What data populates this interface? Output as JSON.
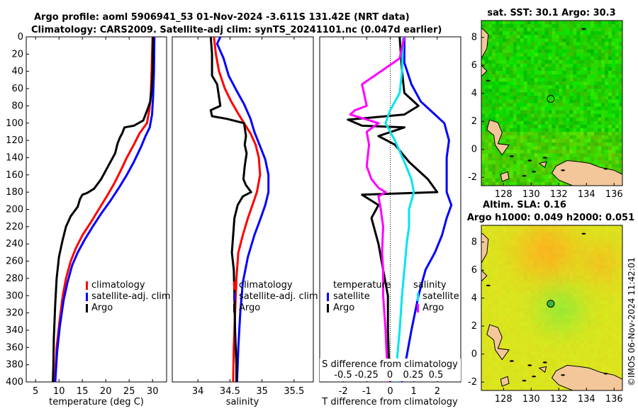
{
  "header": {
    "line1": "Argo profile: aoml 5906941_53 01-Nov-2024 -3.611S 131.42E (NRT data)",
    "line2": "Climatology: CARS2009. Satellite-adj clim: synTS_20241101.nc (0.047d earlier)"
  },
  "colors": {
    "climatology": "#ff0000",
    "satellite": "#0000ff",
    "argo": "#000000",
    "s_sat": "#00e5ee",
    "s_argo": "#ff00ff"
  },
  "chart_data": [
    {
      "type": "line",
      "id": "temperature",
      "xlabel": "temperature (deg C)",
      "ylabel": "",
      "xlim": [
        3,
        33
      ],
      "ylim": [
        0,
        400
      ],
      "xticks": [
        5,
        10,
        15,
        20,
        25,
        30
      ],
      "yticks": [
        0,
        20,
        40,
        60,
        80,
        100,
        120,
        140,
        160,
        180,
        200,
        220,
        240,
        260,
        280,
        300,
        320,
        340,
        360,
        380,
        400
      ],
      "legend": [
        "climatology",
        "satellite-adj. clim",
        "Argo"
      ],
      "series": [
        {
          "name": "climatology",
          "color": "#ff0000",
          "points": [
            [
              30.0,
              0
            ],
            [
              29.8,
              40
            ],
            [
              29.6,
              70
            ],
            [
              29.3,
              85
            ],
            [
              28.8,
              100
            ],
            [
              27.2,
              112
            ],
            [
              26.0,
              125
            ],
            [
              24.5,
              140
            ],
            [
              23.2,
              155
            ],
            [
              21.8,
              170
            ],
            [
              20.2,
              185
            ],
            [
              18.5,
              200
            ],
            [
              16.8,
              215
            ],
            [
              15.0,
              230
            ],
            [
              13.6,
              245
            ],
            [
              12.5,
              260
            ],
            [
              11.5,
              280
            ],
            [
              10.8,
              300
            ],
            [
              10.1,
              330
            ],
            [
              9.5,
              360
            ],
            [
              9.1,
              400
            ]
          ]
        },
        {
          "name": "satellite-adj. clim",
          "color": "#0000ff",
          "points": [
            [
              30.4,
              0
            ],
            [
              30.3,
              40
            ],
            [
              30.1,
              70
            ],
            [
              29.9,
              90
            ],
            [
              29.4,
              105
            ],
            [
              28.5,
              115
            ],
            [
              27.5,
              128
            ],
            [
              26.0,
              145
            ],
            [
              24.5,
              160
            ],
            [
              22.8,
              175
            ],
            [
              21.0,
              190
            ],
            [
              19.0,
              205
            ],
            [
              17.2,
              220
            ],
            [
              15.5,
              235
            ],
            [
              14.0,
              250
            ],
            [
              12.8,
              265
            ],
            [
              11.8,
              285
            ],
            [
              11.0,
              305
            ],
            [
              10.2,
              335
            ],
            [
              9.6,
              365
            ],
            [
              9.2,
              400
            ]
          ]
        },
        {
          "name": "Argo",
          "color": "#000000",
          "points": [
            [
              30.1,
              0
            ],
            [
              30.0,
              40
            ],
            [
              29.8,
              60
            ],
            [
              29.5,
              75
            ],
            [
              29.0,
              83
            ],
            [
              28.5,
              90
            ],
            [
              28.0,
              97
            ],
            [
              26.0,
              103
            ],
            [
              24.0,
              105
            ],
            [
              23.5,
              112
            ],
            [
              23.0,
              117
            ],
            [
              22.5,
              124
            ],
            [
              22.0,
              135
            ],
            [
              21.0,
              145
            ],
            [
              20.0,
              155
            ],
            [
              19.0,
              165
            ],
            [
              17.5,
              176
            ],
            [
              16.0,
              181
            ],
            [
              15.0,
              183
            ],
            [
              14.5,
              188
            ],
            [
              14.0,
              197
            ],
            [
              12.5,
              208
            ],
            [
              11.5,
              220
            ],
            [
              10.8,
              235
            ],
            [
              10.0,
              255
            ],
            [
              9.5,
              280
            ],
            [
              9.2,
              310
            ],
            [
              8.9,
              350
            ],
            [
              8.8,
              380
            ],
            [
              8.7,
              400
            ]
          ]
        }
      ]
    },
    {
      "type": "line",
      "id": "salinity",
      "xlabel": "salinity",
      "xlim": [
        33.6,
        35.8
      ],
      "ylim": [
        0,
        400
      ],
      "xticks": [
        34,
        34.5,
        35,
        35.5
      ],
      "legend": [
        "climatology",
        "satellite-adj. clim",
        "Argo"
      ],
      "series": [
        {
          "name": "climatology",
          "color": "#ff0000",
          "points": [
            [
              34.25,
              0
            ],
            [
              34.28,
              20
            ],
            [
              34.33,
              40
            ],
            [
              34.42,
              60
            ],
            [
              34.52,
              75
            ],
            [
              34.62,
              88
            ],
            [
              34.72,
              100
            ],
            [
              34.82,
              112
            ],
            [
              34.9,
              125
            ],
            [
              34.95,
              140
            ],
            [
              34.97,
              160
            ],
            [
              34.92,
              180
            ],
            [
              34.85,
              195
            ],
            [
              34.78,
              210
            ],
            [
              34.7,
              230
            ],
            [
              34.63,
              250
            ],
            [
              34.6,
              280
            ],
            [
              34.58,
              320
            ],
            [
              34.56,
              360
            ],
            [
              34.55,
              400
            ]
          ]
        },
        {
          "name": "satellite-adj. clim",
          "color": "#0000ff",
          "points": [
            [
              34.35,
              0
            ],
            [
              34.3,
              8
            ],
            [
              34.4,
              25
            ],
            [
              34.48,
              45
            ],
            [
              34.6,
              62
            ],
            [
              34.72,
              78
            ],
            [
              34.82,
              95
            ],
            [
              34.88,
              110
            ],
            [
              34.96,
              125
            ],
            [
              35.05,
              142
            ],
            [
              35.1,
              160
            ],
            [
              35.1,
              180
            ],
            [
              35.05,
              195
            ],
            [
              34.98,
              210
            ],
            [
              34.88,
              230
            ],
            [
              34.78,
              255
            ],
            [
              34.7,
              285
            ],
            [
              34.66,
              320
            ],
            [
              34.63,
              360
            ],
            [
              34.61,
              400
            ]
          ]
        },
        {
          "name": "Argo",
          "color": "#000000",
          "points": [
            [
              34.2,
              0
            ],
            [
              34.22,
              20
            ],
            [
              34.22,
              45
            ],
            [
              34.3,
              55
            ],
            [
              34.32,
              65
            ],
            [
              34.35,
              80
            ],
            [
              34.2,
              85
            ],
            [
              34.22,
              92
            ],
            [
              34.45,
              95
            ],
            [
              34.72,
              100
            ],
            [
              34.75,
              115
            ],
            [
              34.73,
              125
            ],
            [
              34.76,
              135
            ],
            [
              34.73,
              150
            ],
            [
              34.71,
              165
            ],
            [
              34.75,
              172
            ],
            [
              34.83,
              180
            ],
            [
              34.7,
              185
            ],
            [
              34.62,
              195
            ],
            [
              34.57,
              210
            ],
            [
              34.55,
              230
            ],
            [
              34.53,
              250
            ],
            [
              34.56,
              270
            ],
            [
              34.57,
              300
            ],
            [
              34.58,
              340
            ],
            [
              34.6,
              380
            ],
            [
              34.6,
              400
            ]
          ]
        }
      ]
    },
    {
      "type": "line",
      "id": "difference",
      "xlabel": "T difference from climatology",
      "xlabel2": "S difference from climatology",
      "xlim": [
        -3.0,
        3.0
      ],
      "ylim": [
        0,
        400
      ],
      "xticks": [
        -2,
        -1,
        0,
        1,
        2
      ],
      "xticks2": [
        "-0.5",
        "-0.25",
        "0",
        "0.25",
        "0.5"
      ],
      "legend_left_title": "temperature",
      "legend_right_title": "salinity",
      "legend_left": [
        "satellite",
        "Argo"
      ],
      "legend_right": [
        "satellite",
        "Argo"
      ],
      "series": [
        {
          "name": "T satellite",
          "color": "#0000ff",
          "points": [
            [
              0.6,
              0
            ],
            [
              0.6,
              30
            ],
            [
              0.9,
              55
            ],
            [
              1.3,
              75
            ],
            [
              1.7,
              85
            ],
            [
              2.3,
              100
            ],
            [
              2.5,
              120
            ],
            [
              2.4,
              140
            ],
            [
              2.4,
              160
            ],
            [
              2.4,
              180
            ],
            [
              2.6,
              195
            ],
            [
              2.4,
              210
            ],
            [
              2.2,
              230
            ],
            [
              1.9,
              250
            ],
            [
              1.5,
              270
            ],
            [
              1.2,
              300
            ],
            [
              0.9,
              340
            ],
            [
              0.7,
              370
            ],
            [
              0.5,
              400
            ]
          ]
        },
        {
          "name": "T Argo",
          "color": "#000000",
          "points": [
            [
              0.4,
              0
            ],
            [
              0.5,
              40
            ],
            [
              0.6,
              65
            ],
            [
              1.2,
              80
            ],
            [
              0.6,
              90
            ],
            [
              -1.8,
              96
            ],
            [
              -1.2,
              103
            ],
            [
              0.6,
              105
            ],
            [
              -0.5,
              115
            ],
            [
              0.2,
              125
            ],
            [
              0.8,
              145
            ],
            [
              1.6,
              165
            ],
            [
              2.0,
              180
            ],
            [
              -1.2,
              183
            ],
            [
              -0.5,
              195
            ],
            [
              -0.8,
              210
            ],
            [
              -0.5,
              240
            ],
            [
              -0.3,
              270
            ],
            [
              -0.1,
              300
            ],
            [
              -0.1,
              340
            ],
            [
              -0.05,
              380
            ],
            [
              0.0,
              400
            ]
          ]
        },
        {
          "name": "S satellite",
          "color": "#00e5ee",
          "points": [
            [
              0.55,
              0
            ],
            [
              0.5,
              40
            ],
            [
              0.4,
              65
            ],
            [
              0.0,
              85
            ],
            [
              -0.2,
              100
            ],
            [
              0.2,
              120
            ],
            [
              0.6,
              145
            ],
            [
              0.9,
              165
            ],
            [
              1.0,
              180
            ],
            [
              0.8,
              200
            ],
            [
              0.8,
              220
            ],
            [
              0.7,
              240
            ],
            [
              0.6,
              270
            ],
            [
              0.5,
              300
            ],
            [
              0.4,
              340
            ],
            [
              0.3,
              370
            ],
            [
              0.25,
              400
            ]
          ]
        },
        {
          "name": "S Argo",
          "color": "#ff00ff",
          "points": [
            [
              0.6,
              0
            ],
            [
              0.4,
              25
            ],
            [
              -1.2,
              55
            ],
            [
              -1.0,
              80
            ],
            [
              -1.5,
              85
            ],
            [
              -1.7,
              90
            ],
            [
              -0.5,
              100
            ],
            [
              -1.0,
              110
            ],
            [
              -0.9,
              125
            ],
            [
              -1.0,
              150
            ],
            [
              -0.8,
              165
            ],
            [
              -0.5,
              175
            ],
            [
              -0.2,
              180
            ],
            [
              -0.5,
              185
            ],
            [
              -0.4,
              200
            ],
            [
              -0.3,
              220
            ],
            [
              -0.35,
              250
            ],
            [
              -0.3,
              270
            ],
            [
              -0.3,
              300
            ],
            [
              -0.2,
              340
            ],
            [
              -0.1,
              400
            ]
          ]
        }
      ]
    },
    {
      "type": "heatmap",
      "id": "sst_map",
      "title": "sat. SST: 30.1 Argo: 30.3",
      "xticks": [
        128,
        130,
        132,
        134,
        136
      ],
      "yticks": [
        -2,
        0,
        2,
        4,
        6,
        8
      ],
      "xlim": [
        126.4,
        136.6
      ],
      "ylim": [
        -2.6,
        9.2
      ],
      "argo_position": [
        131.42,
        3.6
      ]
    },
    {
      "type": "heatmap",
      "id": "sla_map",
      "title": "Altim. SLA: 0.16",
      "subtitle": "Argo h1000: 0.049 h2000: 0.051",
      "xticks": [
        128,
        130,
        132,
        134,
        136
      ],
      "yticks": [
        -2,
        0,
        2,
        4,
        6,
        8
      ],
      "xlim": [
        126.4,
        136.6
      ],
      "ylim": [
        -2.6,
        9.2
      ],
      "argo_position": [
        131.42,
        3.6
      ]
    }
  ],
  "footer": {
    "credit": "©IMOS 06-Nov-2024 11:42:01"
  }
}
